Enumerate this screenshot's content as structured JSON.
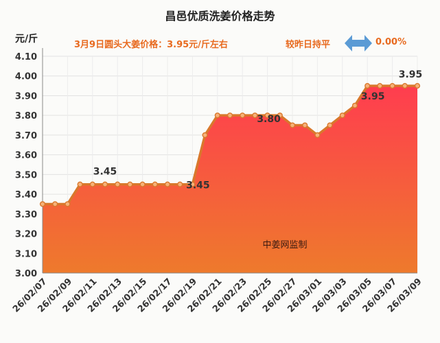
{
  "title": "昌邑优质洗姜价格走势",
  "unit_label": "元/斤",
  "subtitle": "3月9日圆头大姜价格：3.95元/斤左右",
  "compare": {
    "label": "较昨日持平",
    "value": "0.00%",
    "icon": "double-arrow-icon",
    "icon_color": "#5b9bd5"
  },
  "watermark": "中姜网监制",
  "colors": {
    "accent": "#e86a1f",
    "fill_top": "#ff3d4f",
    "fill_bottom": "#ee7a2c",
    "line": "#d9782c",
    "marker_fill": "#f6b27a"
  },
  "chart_data": {
    "type": "area",
    "title": "昌邑优质洗姜价格走势",
    "ylabel": "元/斤",
    "ylim": [
      3.0,
      4.1
    ],
    "yticks": [
      "3.00",
      "3.10",
      "3.20",
      "3.30",
      "3.40",
      "3.50",
      "3.60",
      "3.70",
      "3.80",
      "3.90",
      "4.00",
      "4.10"
    ],
    "x": [
      "26/02/07",
      "26/02/08",
      "26/02/09",
      "26/02/10",
      "26/02/11",
      "26/02/12",
      "26/02/13",
      "26/02/14",
      "26/02/15",
      "26/02/16",
      "26/02/17",
      "26/02/18",
      "26/02/19",
      "26/02/20",
      "26/02/21",
      "26/02/22",
      "26/02/23",
      "26/02/24",
      "26/02/25",
      "26/02/26",
      "26/02/27",
      "26/02/28",
      "26/03/01",
      "26/03/02",
      "26/03/03",
      "26/03/04",
      "26/03/05",
      "26/03/06",
      "26/03/07",
      "26/03/08",
      "26/03/09"
    ],
    "values": [
      3.35,
      3.35,
      3.35,
      3.45,
      3.45,
      3.45,
      3.45,
      3.45,
      3.45,
      3.45,
      3.45,
      3.45,
      3.45,
      3.7,
      3.8,
      3.8,
      3.8,
      3.8,
      3.8,
      3.8,
      3.75,
      3.75,
      3.7,
      3.75,
      3.8,
      3.85,
      3.95,
      3.95,
      3.95,
      3.95,
      3.95
    ],
    "xtick_labels": [
      "26/02/07",
      "26/02/09",
      "26/02/11",
      "26/02/13",
      "26/02/15",
      "26/02/17",
      "26/02/19",
      "26/02/21",
      "26/02/23",
      "26/02/25",
      "26/02/27",
      "26/03/01",
      "26/03/03",
      "26/03/05",
      "26/03/07",
      "26/03/09"
    ],
    "annotations": [
      {
        "index": 5,
        "text": "3.45"
      },
      {
        "index": 12,
        "text": "3.45"
      },
      {
        "index": 18,
        "text": "3.80"
      },
      {
        "index": 26,
        "text": "3.95"
      },
      {
        "index": 30,
        "text": "3.95"
      }
    ]
  }
}
